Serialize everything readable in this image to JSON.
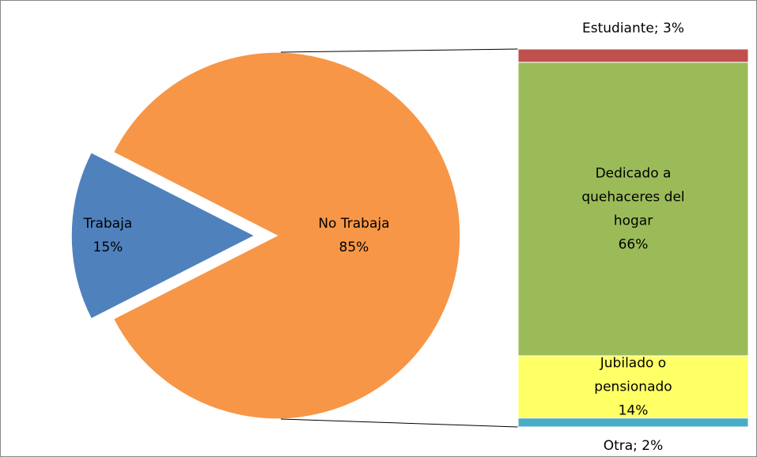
{
  "chart_data": {
    "type": "pie-of-bar",
    "pie": {
      "categories": [
        "Trabaja",
        "No Trabaja"
      ],
      "values": [
        15,
        85
      ],
      "value_labels": [
        "15%",
        "85%"
      ],
      "colors": [
        "#4f81bd",
        "#f79646"
      ]
    },
    "bar": {
      "categories": [
        "Estudiante",
        "Dedicado a quehaceres del hogar",
        "Jubilado o pensionado",
        "Otra"
      ],
      "values": [
        3,
        66,
        14,
        2
      ],
      "value_labels": [
        "3%",
        "66%",
        "14%",
        "2%"
      ],
      "colors": [
        "#c0504d",
        "#9bbb59",
        "#ffff66",
        "#4bacc6"
      ],
      "label_separator": "; "
    }
  }
}
